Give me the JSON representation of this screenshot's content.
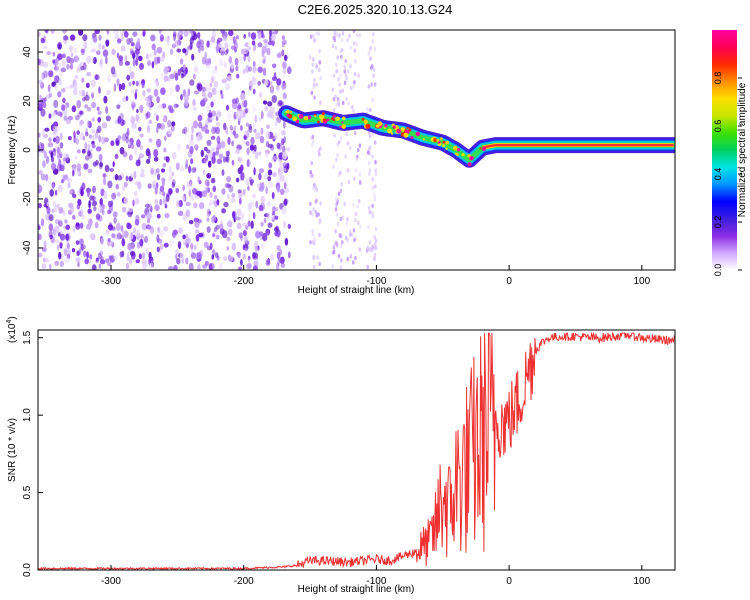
{
  "title": "C2E6.2025.320.10.13.G24",
  "chart_data": [
    {
      "type": "heatmap",
      "title": "C2E6.2025.320.10.13.G24",
      "xlabel": "Height of straight line (km)",
      "ylabel": "Frequency (Hz)",
      "xlim": [
        -355,
        125
      ],
      "ylim": [
        -49,
        49
      ],
      "xticks": [
        -300,
        -200,
        -100,
        0,
        100
      ],
      "yticks": [
        -40,
        -20,
        0,
        20,
        40
      ],
      "colorbar": {
        "label": "Normalized spectral amplitude",
        "range": [
          0,
          1
        ],
        "ticks": [
          0.0,
          0.2,
          0.4,
          0.6,
          0.8
        ],
        "colors": [
          "#ffffff",
          "#cfa8ff",
          "#8a2be2",
          "#3b1ee0",
          "#0000ff",
          "#0096ff",
          "#00e5e5",
          "#00d060",
          "#40e000",
          "#c8e600",
          "#ffe000",
          "#ff8c00",
          "#ff2a00",
          "#ff0055",
          "#ff00a0"
        ]
      },
      "noise_region_x": [
        -355,
        -170
      ],
      "noise_strips_x": [
        [
          -150,
          -142
        ],
        [
          -133,
          -125
        ],
        [
          -124,
          -112
        ],
        [
          -107,
          -100
        ]
      ],
      "ridge": {
        "x": [
          -168,
          -155,
          -140,
          -125,
          -110,
          -95,
          -80,
          -65,
          -50,
          -40,
          -30,
          -20,
          -10,
          0,
          20,
          40,
          60,
          80,
          100,
          125
        ],
        "freq": [
          15,
          12,
          13,
          11,
          12,
          9,
          8,
          5,
          3,
          0,
          -4,
          1,
          2,
          2,
          2,
          2,
          2,
          2,
          2,
          2
        ]
      }
    },
    {
      "type": "line",
      "title": "",
      "xlabel": "Height of straight line (km)",
      "ylabel": "SNR (10 * v/v)",
      "y_multiplier": "(x10",
      "y_exponent": "4",
      "y_multiplier_close": ")",
      "xlim": [
        -355,
        125
      ],
      "ylim": [
        0.0,
        1.55
      ],
      "xticks": [
        -300,
        -200,
        -100,
        0,
        100
      ],
      "yticks": [
        0.0,
        0.5,
        1.0,
        1.5
      ],
      "series": [
        {
          "name": "SNR",
          "color": "#ee3030",
          "x": [
            -355,
            -200,
            -170,
            -160,
            -150,
            -140,
            -120,
            -100,
            -90,
            -80,
            -70,
            -60,
            -55,
            -50,
            -45,
            -40,
            -35,
            -30,
            -25,
            -20,
            -15,
            -10,
            -5,
            0,
            5,
            10,
            15,
            20,
            25,
            30,
            40,
            50,
            60,
            70,
            80,
            90,
            100,
            110,
            125
          ],
          "y": [
            0.01,
            0.01,
            0.02,
            0.03,
            0.06,
            0.06,
            0.05,
            0.07,
            0.06,
            0.09,
            0.12,
            0.18,
            0.28,
            0.5,
            0.38,
            0.55,
            0.62,
            0.68,
            0.78,
            0.85,
            0.92,
            0.98,
            0.95,
            0.97,
            1.05,
            1.15,
            1.3,
            1.42,
            1.47,
            1.5,
            1.51,
            1.51,
            1.5,
            1.5,
            1.51,
            1.52,
            1.5,
            1.49,
            1.48
          ]
        }
      ]
    }
  ]
}
